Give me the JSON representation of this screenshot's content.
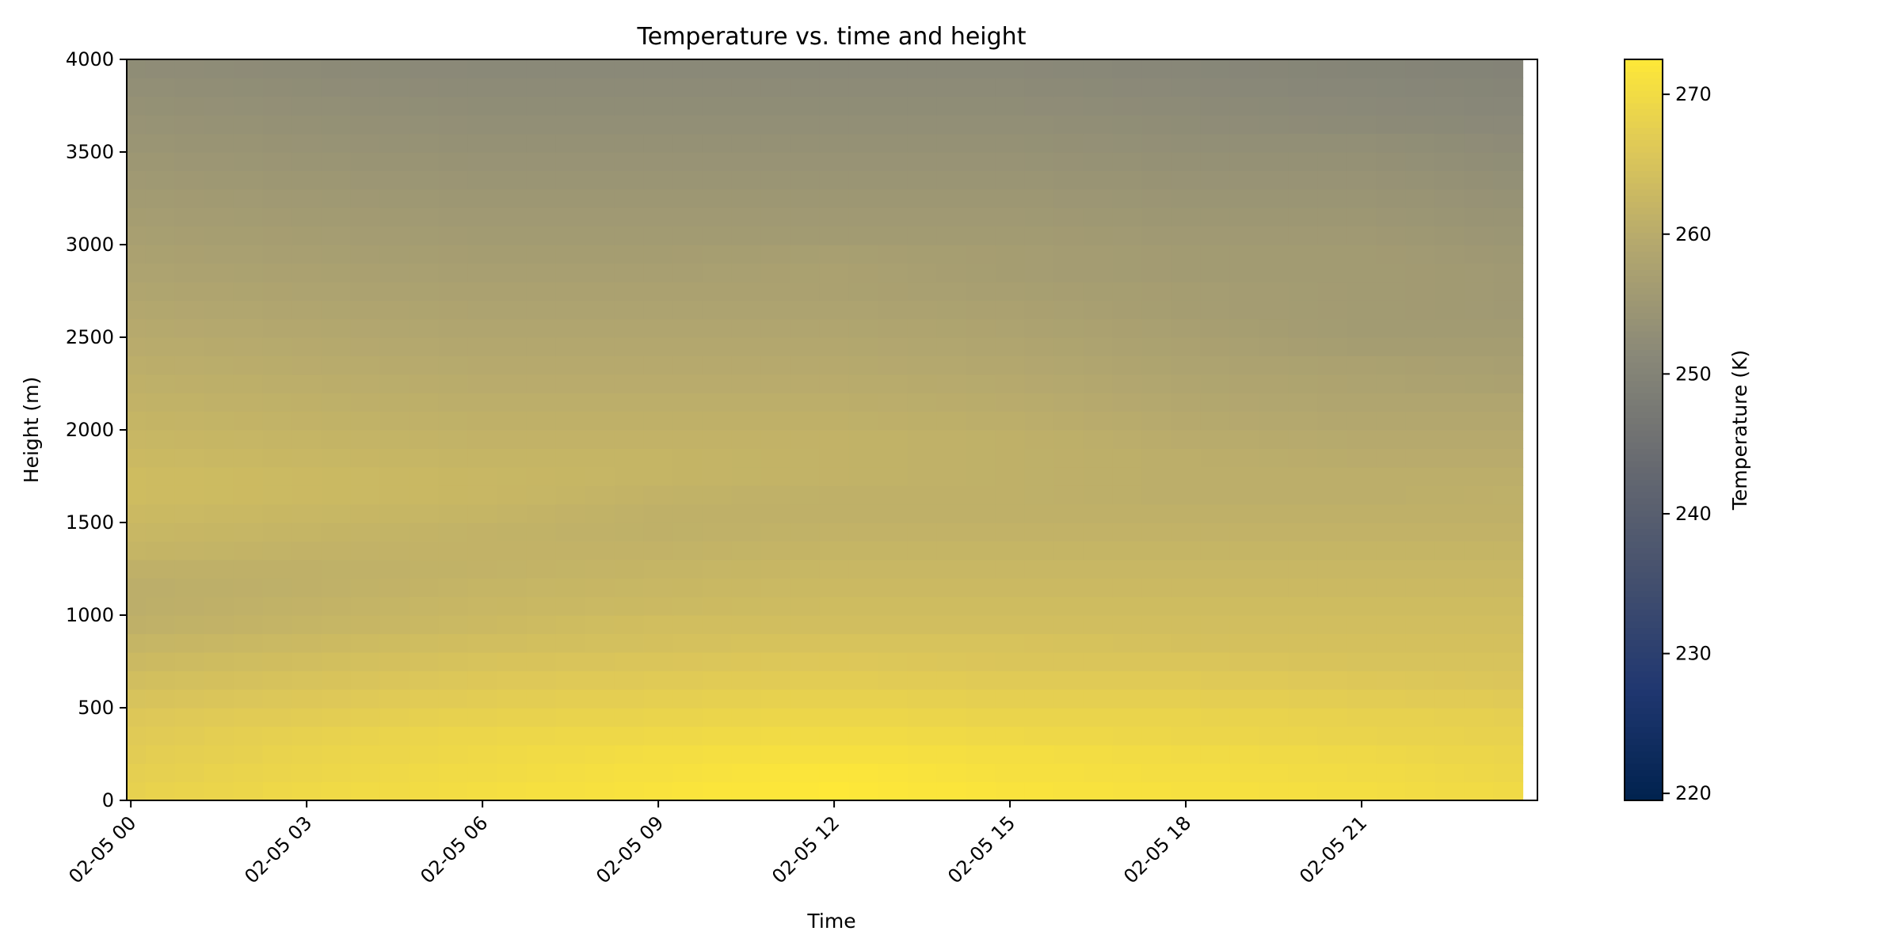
{
  "chart_data": {
    "type": "heatmap",
    "title": "Temperature vs. time and height",
    "xlabel": "Time",
    "ylabel": "Height (m)",
    "colorbar_label": "Temperature (K)",
    "colormap": "cividis",
    "color_range": [
      219.5,
      272.5
    ],
    "x_start": "2015-02-05 00:00",
    "x_step_hours": 0.5,
    "x_ticks": [
      "02-05 00",
      "02-05 03",
      "02-05 06",
      "02-05 09",
      "02-05 12",
      "02-05 15",
      "02-05 18",
      "02-05 21"
    ],
    "x_range_hours": [
      -0.07,
      24.0
    ],
    "y_ticks": [
      0,
      500,
      1000,
      1500,
      2000,
      2500,
      3000,
      3500,
      4000
    ],
    "ylim": [
      0,
      4000
    ],
    "colorbar_ticks": [
      220,
      230,
      240,
      250,
      260,
      270
    ],
    "height_rows_m": [
      0,
      100,
      200,
      300,
      400,
      500,
      600,
      700,
      800,
      900,
      1000,
      1100,
      1200,
      1300,
      1400,
      1500,
      1600,
      1700,
      1800,
      1900,
      2000,
      2100,
      2200,
      2300,
      2400,
      2500,
      2600,
      2700,
      2800,
      2900,
      3000,
      3100,
      3200,
      3300,
      3400,
      3500,
      3600,
      3700,
      3800,
      3900
    ],
    "time_columns_hours": [
      0,
      3,
      6,
      9,
      12,
      15,
      18,
      21,
      24
    ],
    "values_K": [
      [
        268.0,
        269.5,
        270.5,
        271.5,
        272.5,
        271.5,
        271.0,
        270.5,
        269.5
      ],
      [
        267.5,
        269.0,
        270.0,
        271.0,
        272.0,
        271.0,
        270.5,
        270.0,
        269.0
      ],
      [
        267.0,
        268.5,
        269.5,
        270.5,
        271.0,
        270.5,
        270.0,
        269.5,
        268.5
      ],
      [
        266.5,
        268.0,
        269.0,
        269.5,
        270.0,
        269.5,
        269.0,
        268.5,
        268.0
      ],
      [
        266.0,
        267.0,
        268.0,
        268.5,
        269.0,
        268.5,
        268.5,
        268.0,
        267.5
      ],
      [
        265.0,
        266.0,
        267.0,
        267.5,
        268.0,
        267.5,
        267.5,
        267.0,
        266.5
      ],
      [
        264.0,
        265.0,
        266.0,
        266.5,
        267.0,
        266.5,
        266.5,
        266.0,
        265.5
      ],
      [
        263.0,
        264.0,
        265.0,
        265.5,
        266.0,
        265.5,
        265.5,
        265.0,
        265.0
      ],
      [
        262.0,
        263.0,
        264.0,
        264.5,
        265.0,
        265.0,
        264.5,
        264.5,
        264.5
      ],
      [
        261.0,
        262.0,
        263.0,
        264.0,
        264.0,
        264.0,
        264.0,
        264.0,
        264.0
      ],
      [
        260.5,
        261.5,
        262.5,
        263.0,
        263.5,
        263.5,
        263.5,
        263.5,
        263.5
      ],
      [
        260.5,
        261.0,
        262.0,
        262.5,
        263.0,
        263.0,
        263.0,
        263.0,
        263.0
      ],
      [
        261.0,
        261.0,
        261.5,
        262.0,
        262.5,
        262.5,
        262.5,
        262.5,
        262.5
      ],
      [
        262.0,
        261.5,
        261.5,
        261.5,
        262.0,
        262.0,
        262.0,
        262.0,
        262.0
      ],
      [
        262.5,
        262.0,
        261.5,
        261.0,
        261.5,
        261.5,
        261.5,
        261.5,
        261.5
      ],
      [
        263.0,
        262.5,
        262.0,
        261.0,
        261.0,
        261.0,
        261.0,
        261.0,
        261.0
      ],
      [
        263.5,
        263.0,
        262.5,
        261.5,
        261.0,
        261.0,
        260.5,
        260.5,
        261.0
      ],
      [
        263.5,
        263.0,
        262.5,
        262.0,
        261.5,
        261.0,
        260.5,
        260.5,
        260.5
      ],
      [
        263.0,
        262.5,
        262.0,
        262.0,
        261.5,
        261.0,
        260.5,
        260.0,
        260.0
      ],
      [
        262.5,
        262.0,
        261.5,
        261.5,
        261.5,
        261.0,
        260.0,
        259.5,
        259.5
      ],
      [
        262.0,
        261.5,
        261.0,
        261.0,
        261.0,
        260.5,
        259.5,
        259.0,
        259.0
      ],
      [
        261.5,
        261.0,
        260.5,
        260.5,
        260.5,
        260.0,
        259.0,
        258.5,
        258.5
      ],
      [
        261.0,
        260.5,
        260.0,
        260.0,
        260.0,
        259.5,
        258.5,
        258.0,
        257.5
      ],
      [
        260.5,
        260.0,
        259.5,
        259.5,
        259.5,
        259.0,
        258.0,
        257.5,
        257.0
      ],
      [
        260.0,
        259.5,
        259.0,
        259.0,
        259.0,
        258.5,
        257.5,
        256.5,
        256.5
      ],
      [
        259.5,
        259.0,
        258.5,
        258.5,
        258.5,
        258.0,
        257.0,
        256.0,
        256.0
      ],
      [
        259.0,
        258.5,
        258.0,
        258.0,
        258.0,
        257.5,
        256.5,
        256.0,
        255.5
      ],
      [
        258.5,
        258.0,
        257.5,
        257.5,
        257.5,
        257.0,
        256.5,
        256.0,
        255.5
      ],
      [
        258.0,
        257.5,
        257.0,
        257.0,
        257.5,
        256.5,
        256.0,
        256.0,
        255.5
      ],
      [
        257.5,
        257.0,
        256.5,
        256.5,
        257.0,
        256.5,
        256.0,
        256.0,
        255.0
      ],
      [
        257.0,
        256.5,
        256.0,
        256.0,
        256.0,
        256.0,
        255.5,
        255.5,
        254.5
      ],
      [
        256.5,
        256.0,
        255.5,
        255.5,
        255.5,
        255.5,
        255.0,
        255.0,
        254.0
      ],
      [
        256.0,
        255.5,
        255.0,
        255.0,
        255.0,
        255.0,
        254.5,
        254.5,
        253.5
      ],
      [
        255.5,
        255.0,
        254.5,
        254.5,
        254.5,
        254.5,
        254.0,
        254.0,
        253.0
      ],
      [
        255.0,
        254.5,
        254.0,
        254.0,
        254.0,
        254.0,
        253.5,
        253.5,
        252.5
      ],
      [
        254.5,
        254.0,
        253.5,
        253.5,
        253.5,
        253.5,
        253.0,
        253.0,
        252.0
      ],
      [
        254.0,
        253.5,
        253.0,
        253.0,
        253.0,
        253.0,
        252.5,
        252.0,
        251.5
      ],
      [
        253.5,
        253.0,
        252.5,
        252.5,
        252.5,
        252.5,
        252.0,
        251.5,
        251.0
      ],
      [
        253.0,
        252.5,
        252.0,
        252.0,
        252.0,
        252.0,
        251.5,
        251.0,
        250.5
      ],
      [
        252.5,
        252.0,
        251.5,
        251.5,
        251.5,
        251.5,
        251.0,
        250.5,
        250.0
      ]
    ]
  }
}
